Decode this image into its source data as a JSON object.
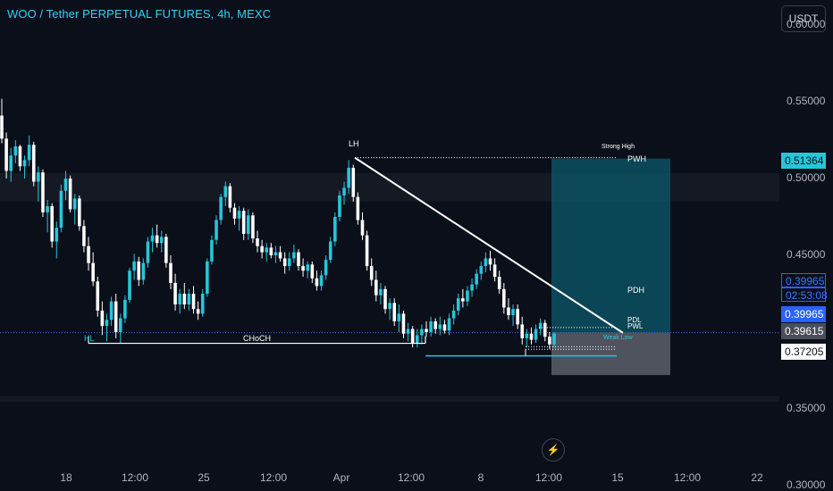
{
  "header": {
    "title": "WOO / Tether PERPETUAL FUTURES, 4h, MEXC",
    "currency_button": "USDT"
  },
  "chart_data": {
    "type": "candlestick",
    "title": "WOO / Tether PERPETUAL FUTURES, 4h, MEXC",
    "y_axis": {
      "ticks": [
        "0.60000",
        "0.55000",
        "0.50000",
        "0.45000",
        "0.35000",
        "0.30000"
      ],
      "range": [
        0.2965,
        0.6163
      ]
    },
    "x_axis": {
      "ticks": [
        "18",
        "12:00",
        "25",
        "12:00",
        "Apr",
        "12:00",
        "8",
        "12:00",
        "15",
        "12:00",
        "22"
      ]
    },
    "price_tags": [
      {
        "value": "0.51364",
        "style": "cyan"
      },
      {
        "value": "0.39965",
        "style": "blue-outline"
      },
      {
        "value": "02:53:08",
        "style": "blue-outline"
      },
      {
        "value": "0.39965",
        "style": "blue"
      },
      {
        "value": "0.39615",
        "style": "gray"
      },
      {
        "value": "0.37205",
        "style": "white"
      }
    ],
    "annotations": {
      "lh": "LH",
      "hl": "HL",
      "choch": "CHoCH",
      "strong_high": "Strong High",
      "pwh": "PWH",
      "pdh": "PDH",
      "pdl": "PDL",
      "pwl": "PWL",
      "weak_low": "Weak Low"
    },
    "levels": {
      "lh_high": 0.5136,
      "hl_low": 0.3927,
      "weak_low": 0.3845,
      "pdh": 0.403,
      "current": 0.39965,
      "pdl": 0.3905,
      "pwl": 0.3888
    },
    "colors": {
      "up": "#26c6da",
      "down": "#ffffff",
      "background": "#0b0f1a",
      "accent_blue": "#2962ff",
      "zone_cyan": "#0c5a6b"
    },
    "candles": [
      [
        0.541,
        0.552,
        0.523,
        0.526
      ],
      [
        0.526,
        0.53,
        0.5,
        0.505
      ],
      [
        0.505,
        0.52,
        0.498,
        0.515
      ],
      [
        0.515,
        0.525,
        0.51,
        0.521
      ],
      [
        0.521,
        0.522,
        0.505,
        0.508
      ],
      [
        0.508,
        0.515,
        0.5,
        0.512
      ],
      [
        0.512,
        0.528,
        0.508,
        0.522
      ],
      [
        0.522,
        0.524,
        0.495,
        0.498
      ],
      [
        0.498,
        0.508,
        0.485,
        0.504
      ],
      [
        0.504,
        0.506,
        0.475,
        0.478
      ],
      [
        0.478,
        0.486,
        0.465,
        0.482
      ],
      [
        0.482,
        0.484,
        0.455,
        0.459
      ],
      [
        0.459,
        0.472,
        0.448,
        0.468
      ],
      [
        0.468,
        0.496,
        0.465,
        0.492
      ],
      [
        0.492,
        0.505,
        0.486,
        0.5
      ],
      [
        0.5,
        0.502,
        0.478,
        0.48
      ],
      [
        0.48,
        0.49,
        0.47,
        0.487
      ],
      [
        0.487,
        0.489,
        0.466,
        0.469
      ],
      [
        0.469,
        0.473,
        0.452,
        0.456
      ],
      [
        0.456,
        0.462,
        0.44,
        0.445
      ],
      [
        0.445,
        0.452,
        0.43,
        0.433
      ],
      [
        0.433,
        0.436,
        0.41,
        0.414
      ],
      [
        0.414,
        0.42,
        0.398,
        0.404
      ],
      [
        0.404,
        0.412,
        0.394,
        0.408
      ],
      [
        0.408,
        0.423,
        0.404,
        0.42
      ],
      [
        0.42,
        0.425,
        0.396,
        0.4
      ],
      [
        0.4,
        0.412,
        0.393,
        0.409
      ],
      [
        0.409,
        0.424,
        0.406,
        0.421
      ],
      [
        0.421,
        0.442,
        0.419,
        0.44
      ],
      [
        0.44,
        0.451,
        0.434,
        0.446
      ],
      [
        0.446,
        0.449,
        0.43,
        0.434
      ],
      [
        0.434,
        0.448,
        0.431,
        0.445
      ],
      [
        0.445,
        0.462,
        0.442,
        0.459
      ],
      [
        0.459,
        0.468,
        0.452,
        0.463
      ],
      [
        0.463,
        0.47,
        0.455,
        0.458
      ],
      [
        0.458,
        0.466,
        0.452,
        0.462
      ],
      [
        0.462,
        0.464,
        0.442,
        0.445
      ],
      [
        0.445,
        0.45,
        0.428,
        0.432
      ],
      [
        0.432,
        0.438,
        0.414,
        0.418
      ],
      [
        0.418,
        0.428,
        0.412,
        0.425
      ],
      [
        0.425,
        0.432,
        0.415,
        0.418
      ],
      [
        0.418,
        0.428,
        0.414,
        0.425
      ],
      [
        0.425,
        0.43,
        0.412,
        0.415
      ],
      [
        0.415,
        0.42,
        0.408,
        0.412
      ],
      [
        0.412,
        0.428,
        0.41,
        0.425
      ],
      [
        0.425,
        0.448,
        0.423,
        0.446
      ],
      [
        0.446,
        0.463,
        0.444,
        0.46
      ],
      [
        0.46,
        0.476,
        0.457,
        0.473
      ],
      [
        0.473,
        0.49,
        0.47,
        0.488
      ],
      [
        0.488,
        0.498,
        0.482,
        0.495
      ],
      [
        0.495,
        0.497,
        0.478,
        0.481
      ],
      [
        0.481,
        0.484,
        0.47,
        0.474
      ],
      [
        0.474,
        0.482,
        0.466,
        0.479
      ],
      [
        0.479,
        0.481,
        0.46,
        0.464
      ],
      [
        0.464,
        0.48,
        0.46,
        0.476
      ],
      [
        0.476,
        0.478,
        0.458,
        0.461
      ],
      [
        0.461,
        0.466,
        0.452,
        0.456
      ],
      [
        0.456,
        0.46,
        0.448,
        0.452
      ],
      [
        0.452,
        0.458,
        0.446,
        0.455
      ],
      [
        0.455,
        0.458,
        0.448,
        0.45
      ],
      [
        0.45,
        0.456,
        0.445,
        0.452
      ],
      [
        0.452,
        0.456,
        0.446,
        0.448
      ],
      [
        0.448,
        0.452,
        0.438,
        0.443
      ],
      [
        0.443,
        0.452,
        0.44,
        0.448
      ],
      [
        0.448,
        0.457,
        0.445,
        0.452
      ],
      [
        0.452,
        0.454,
        0.44,
        0.443
      ],
      [
        0.443,
        0.448,
        0.436,
        0.44
      ],
      [
        0.44,
        0.446,
        0.435,
        0.444
      ],
      [
        0.444,
        0.446,
        0.432,
        0.435
      ],
      [
        0.435,
        0.44,
        0.427,
        0.43
      ],
      [
        0.43,
        0.44,
        0.427,
        0.437
      ],
      [
        0.437,
        0.45,
        0.434,
        0.447
      ],
      [
        0.447,
        0.462,
        0.445,
        0.459
      ],
      [
        0.459,
        0.478,
        0.456,
        0.475
      ],
      [
        0.475,
        0.492,
        0.472,
        0.489
      ],
      [
        0.489,
        0.498,
        0.483,
        0.494
      ],
      [
        0.494,
        0.512,
        0.49,
        0.507
      ],
      [
        0.507,
        0.509,
        0.485,
        0.488
      ],
      [
        0.488,
        0.491,
        0.47,
        0.473
      ],
      [
        0.473,
        0.478,
        0.46,
        0.463
      ],
      [
        0.463,
        0.466,
        0.44,
        0.443
      ],
      [
        0.443,
        0.448,
        0.43,
        0.434
      ],
      [
        0.434,
        0.44,
        0.42,
        0.424
      ],
      [
        0.424,
        0.432,
        0.418,
        0.428
      ],
      [
        0.428,
        0.43,
        0.412,
        0.415
      ],
      [
        0.415,
        0.422,
        0.408,
        0.419
      ],
      [
        0.419,
        0.422,
        0.404,
        0.407
      ],
      [
        0.407,
        0.418,
        0.4,
        0.412
      ],
      [
        0.412,
        0.414,
        0.396,
        0.399
      ],
      [
        0.399,
        0.406,
        0.394,
        0.402
      ],
      [
        0.402,
        0.404,
        0.39,
        0.393
      ],
      [
        0.393,
        0.402,
        0.39,
        0.398
      ],
      [
        0.398,
        0.405,
        0.392,
        0.402
      ],
      [
        0.402,
        0.407,
        0.397,
        0.4
      ],
      [
        0.4,
        0.41,
        0.397,
        0.407
      ],
      [
        0.407,
        0.409,
        0.399,
        0.402
      ],
      [
        0.402,
        0.41,
        0.398,
        0.405
      ],
      [
        0.405,
        0.408,
        0.399,
        0.401
      ],
      [
        0.401,
        0.412,
        0.398,
        0.409
      ],
      [
        0.409,
        0.418,
        0.405,
        0.414
      ],
      [
        0.414,
        0.425,
        0.411,
        0.422
      ],
      [
        0.422,
        0.428,
        0.416,
        0.42
      ],
      [
        0.42,
        0.43,
        0.417,
        0.427
      ],
      [
        0.427,
        0.435,
        0.423,
        0.431
      ],
      [
        0.431,
        0.441,
        0.428,
        0.438
      ],
      [
        0.438,
        0.446,
        0.434,
        0.443
      ],
      [
        0.443,
        0.452,
        0.439,
        0.448
      ],
      [
        0.448,
        0.453,
        0.44,
        0.444
      ],
      [
        0.444,
        0.448,
        0.433,
        0.436
      ],
      [
        0.436,
        0.44,
        0.425,
        0.428
      ],
      [
        0.428,
        0.432,
        0.412,
        0.416
      ],
      [
        0.416,
        0.422,
        0.408,
        0.411
      ],
      [
        0.411,
        0.418,
        0.404,
        0.415
      ],
      [
        0.415,
        0.418,
        0.402,
        0.405
      ],
      [
        0.405,
        0.41,
        0.392,
        0.396
      ],
      [
        0.396,
        0.402,
        0.39,
        0.399
      ],
      [
        0.399,
        0.403,
        0.392,
        0.395
      ],
      [
        0.395,
        0.405,
        0.393,
        0.402
      ],
      [
        0.402,
        0.409,
        0.398,
        0.406
      ],
      [
        0.406,
        0.408,
        0.394,
        0.397
      ],
      [
        0.397,
        0.4,
        0.389,
        0.392
      ],
      [
        0.392,
        0.4,
        0.39,
        0.399
      ]
    ]
  }
}
